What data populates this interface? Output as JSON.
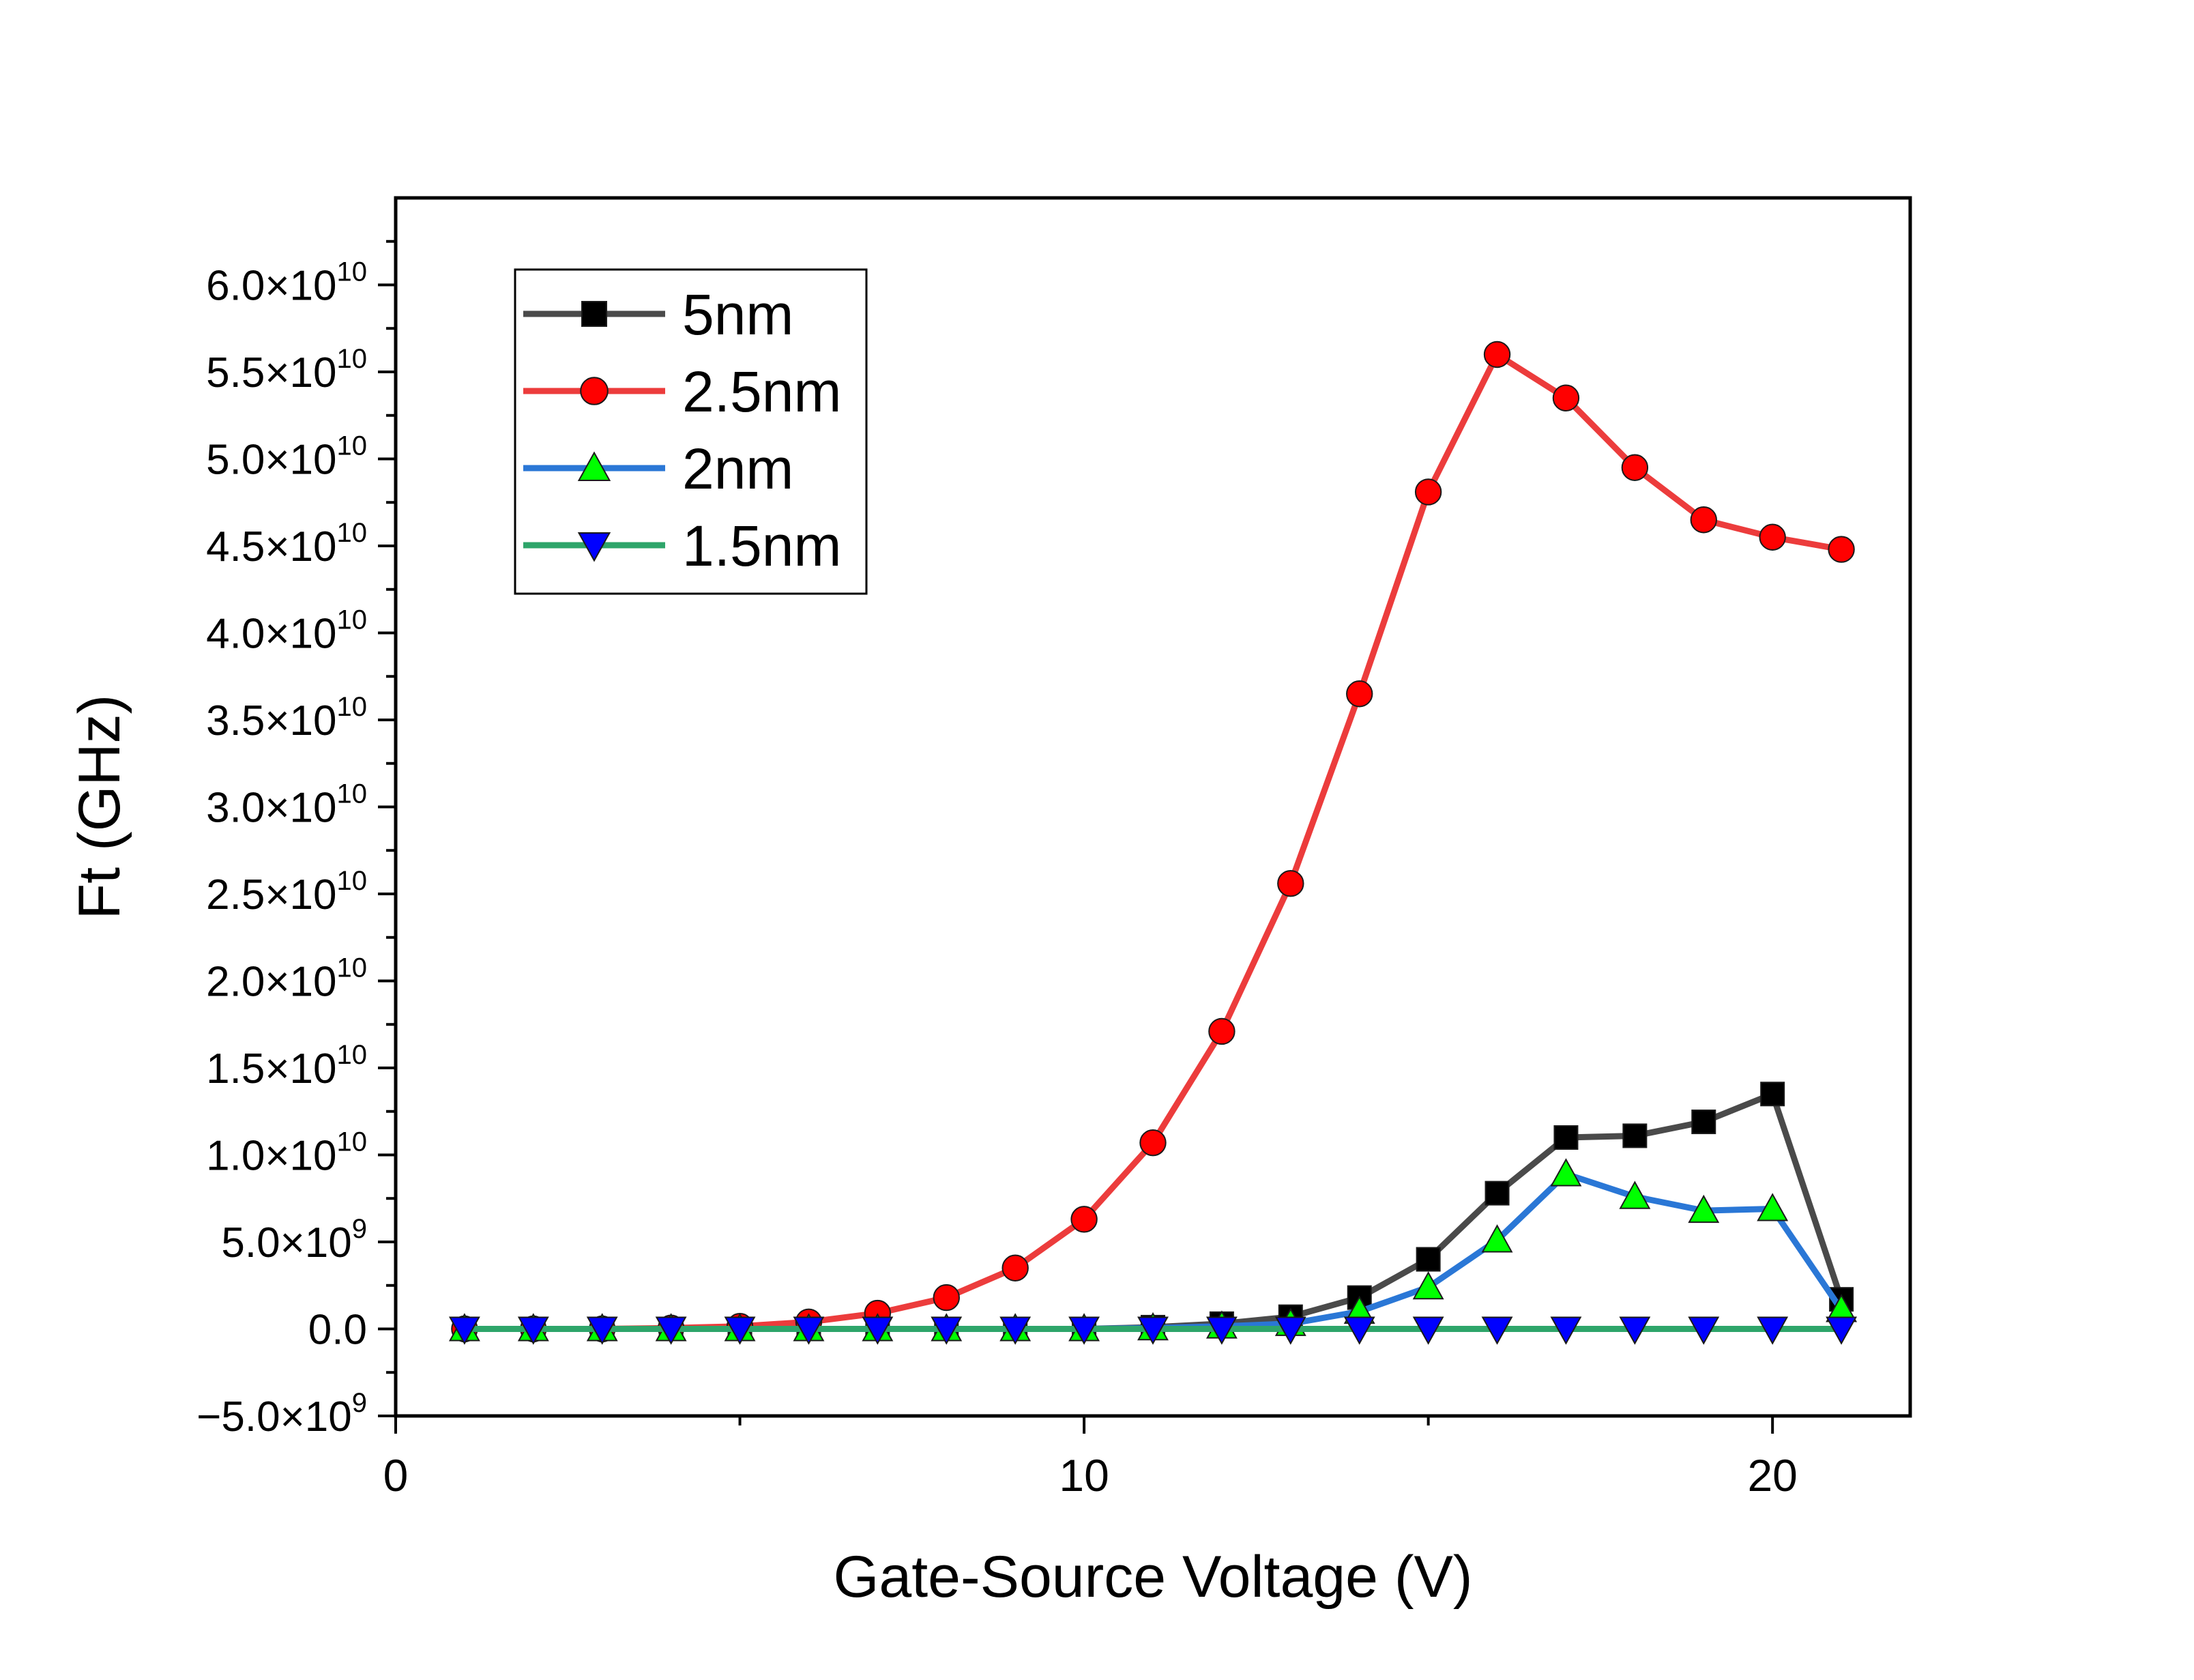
{
  "chart_data": {
    "type": "line",
    "title": "",
    "xlabel": "Gate-Source Voltage (V)",
    "ylabel": "Ft (GHz)",
    "xlim": [
      0,
      22
    ],
    "ylim": [
      -5000000000,
      65000000000
    ],
    "x_ticks": [
      0,
      10,
      20
    ],
    "x_tick_labels": [
      "0",
      "10",
      "20"
    ],
    "y_ticks": [
      -5000000000,
      0,
      5000000000,
      10000000000,
      15000000000,
      20000000000,
      25000000000,
      30000000000,
      35000000000,
      40000000000,
      45000000000,
      50000000000,
      55000000000,
      60000000000
    ],
    "y_tick_labels": [
      {
        "mantissa": "−5.0×10",
        "exp": "9"
      },
      {
        "mantissa": "0.0",
        "exp": ""
      },
      {
        "mantissa": "5.0×10",
        "exp": "9"
      },
      {
        "mantissa": "1.0×10",
        "exp": "10"
      },
      {
        "mantissa": "1.5×10",
        "exp": "10"
      },
      {
        "mantissa": "2.0×10",
        "exp": "10"
      },
      {
        "mantissa": "2.5×10",
        "exp": "10"
      },
      {
        "mantissa": "3.0×10",
        "exp": "10"
      },
      {
        "mantissa": "3.5×10",
        "exp": "10"
      },
      {
        "mantissa": "4.0×10",
        "exp": "10"
      },
      {
        "mantissa": "4.5×10",
        "exp": "10"
      },
      {
        "mantissa": "5.0×10",
        "exp": "10"
      },
      {
        "mantissa": "5.5×10",
        "exp": "10"
      },
      {
        "mantissa": "6.0×10",
        "exp": "10"
      }
    ],
    "legend_position": "top-left",
    "grid": false,
    "x": [
      1,
      2,
      3,
      4,
      5,
      6,
      7,
      8,
      9,
      10,
      11,
      12,
      13,
      14,
      15,
      16,
      17,
      18,
      19,
      20,
      21
    ],
    "series": [
      {
        "name": "5nm",
        "color": "#4a4a4a",
        "marker_color": "#000000",
        "marker": "square",
        "values": [
          0,
          0,
          0,
          0,
          0,
          0,
          0,
          0,
          0,
          0,
          100000000,
          300000000,
          700000000,
          1800000000,
          4000000000,
          7800000000,
          11000000000,
          11100000000,
          11900000000,
          13500000000,
          1700000000
        ]
      },
      {
        "name": "2.5nm",
        "color": "#ec3c3c",
        "marker_color": "#ff0000",
        "marker": "circle",
        "values": [
          0,
          0,
          0,
          50000000,
          150000000,
          400000000,
          900000000,
          1800000000,
          3500000000,
          6300000000,
          10700000000,
          17100000000,
          25600000000,
          36500000000,
          48100000000,
          56000000000,
          53500000000,
          49500000000,
          46500000000,
          45500000000,
          44800000000
        ]
      },
      {
        "name": "2nm",
        "color": "#2a77d6",
        "marker_color": "#00ff00",
        "marker": "triangle-up",
        "values": [
          0,
          0,
          0,
          0,
          0,
          0,
          0,
          0,
          0,
          0,
          50000000,
          150000000,
          300000000,
          1000000000,
          2400000000,
          5100000000,
          8900000000,
          7600000000,
          6800000000,
          6900000000,
          1100000000
        ]
      },
      {
        "name": "1.5nm",
        "color": "#2ea56a",
        "marker_color": "#0000ff",
        "marker": "triangle-down",
        "values": [
          0,
          0,
          0,
          0,
          0,
          0,
          0,
          0,
          0,
          0,
          0,
          0,
          0,
          0,
          0,
          0,
          0,
          0,
          0,
          0,
          0
        ]
      }
    ]
  }
}
